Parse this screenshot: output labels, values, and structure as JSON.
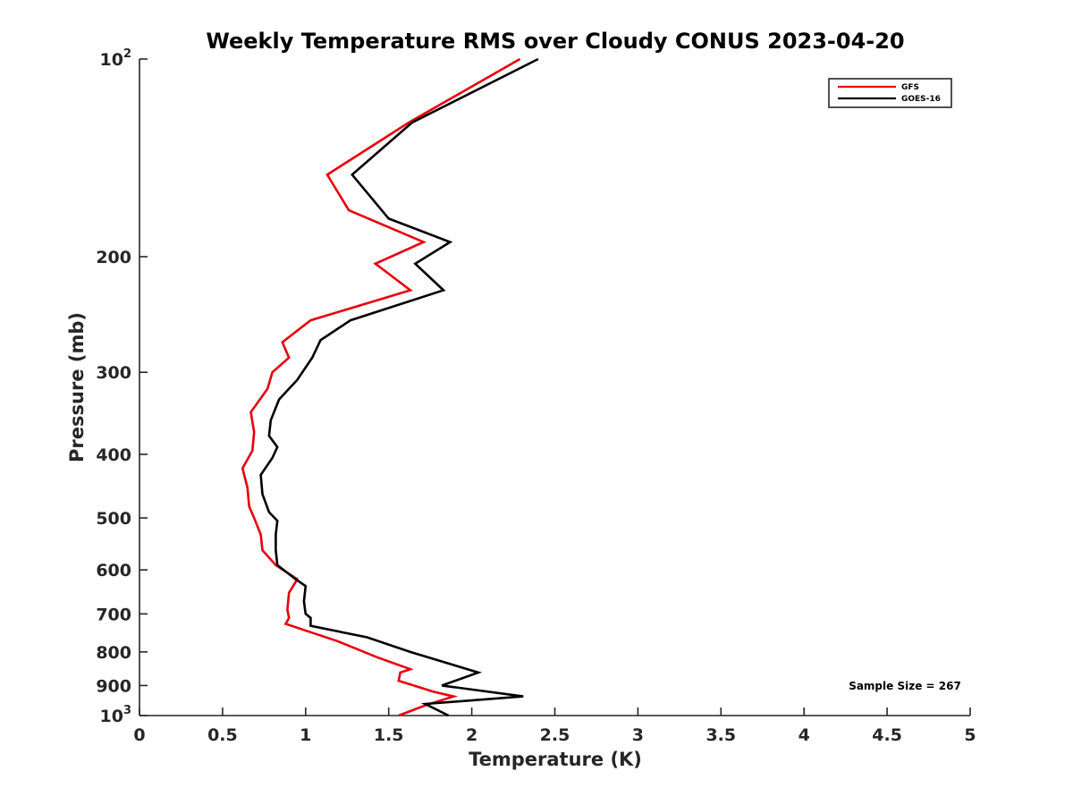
{
  "chart_data": {
    "type": "line",
    "title": "Weekly Temperature RMS over Cloudy CONUS 2023-04-20",
    "xlabel": "Temperature (K)",
    "ylabel": "Pressure (mb)",
    "xlim": [
      0,
      5
    ],
    "ylim": [
      100,
      1000
    ],
    "yscale": "log",
    "y_reversed": true,
    "grid": false,
    "legend_position": "top-right",
    "xticks": [
      0,
      0.5,
      1,
      1.5,
      2,
      2.5,
      3,
      3.5,
      4,
      4.5,
      5
    ],
    "xtick_labels": [
      "0",
      "0.5",
      "1",
      "1.5",
      "2",
      "2.5",
      "3",
      "3.5",
      "4",
      "4.5",
      "5"
    ],
    "yticks": [
      {
        "value": 100,
        "base": "10",
        "exp": "2"
      },
      {
        "value": 200,
        "label": "200"
      },
      {
        "value": 300,
        "label": "300"
      },
      {
        "value": 400,
        "label": "400"
      },
      {
        "value": 500,
        "label": "500"
      },
      {
        "value": 600,
        "label": "600"
      },
      {
        "value": 700,
        "label": "700"
      },
      {
        "value": 800,
        "label": "800"
      },
      {
        "value": 900,
        "label": "900"
      },
      {
        "value": 1000,
        "base": "10",
        "exp": "3"
      }
    ],
    "annotation": "Sample Size = 267",
    "series": [
      {
        "name": "GFS",
        "color": "#e8000b",
        "points": [
          [
            2.29,
            100
          ],
          [
            1.62,
            125
          ],
          [
            1.13,
            150
          ],
          [
            1.26,
            170
          ],
          [
            1.71,
            190
          ],
          [
            1.42,
            205
          ],
          [
            1.63,
            225
          ],
          [
            1.03,
            250
          ],
          [
            0.86,
            270
          ],
          [
            0.9,
            285
          ],
          [
            0.8,
            300
          ],
          [
            0.77,
            318
          ],
          [
            0.67,
            345
          ],
          [
            0.69,
            370
          ],
          [
            0.68,
            395
          ],
          [
            0.62,
            420
          ],
          [
            0.65,
            450
          ],
          [
            0.66,
            480
          ],
          [
            0.69,
            500
          ],
          [
            0.73,
            530
          ],
          [
            0.74,
            560
          ],
          [
            0.82,
            590
          ],
          [
            0.95,
            620
          ],
          [
            0.9,
            650
          ],
          [
            0.89,
            690
          ],
          [
            0.9,
            710
          ],
          [
            0.88,
            725
          ],
          [
            1.02,
            745
          ],
          [
            1.19,
            770
          ],
          [
            1.43,
            815
          ],
          [
            1.63,
            850
          ],
          [
            1.57,
            860
          ],
          [
            1.56,
            885
          ],
          [
            1.77,
            920
          ],
          [
            1.89,
            935
          ],
          [
            1.72,
            965
          ],
          [
            1.56,
            1000
          ]
        ]
      },
      {
        "name": "GOES-16",
        "color": "#000000",
        "points": [
          [
            2.4,
            100
          ],
          [
            1.64,
            125
          ],
          [
            1.28,
            150
          ],
          [
            1.5,
            175
          ],
          [
            1.87,
            190
          ],
          [
            1.66,
            205
          ],
          [
            1.83,
            225
          ],
          [
            1.27,
            250
          ],
          [
            1.09,
            268
          ],
          [
            1.04,
            285
          ],
          [
            0.95,
            308
          ],
          [
            0.84,
            330
          ],
          [
            0.79,
            355
          ],
          [
            0.78,
            375
          ],
          [
            0.83,
            390
          ],
          [
            0.8,
            405
          ],
          [
            0.73,
            430
          ],
          [
            0.74,
            460
          ],
          [
            0.78,
            490
          ],
          [
            0.83,
            505
          ],
          [
            0.82,
            530
          ],
          [
            0.82,
            560
          ],
          [
            0.83,
            590
          ],
          [
            0.94,
            620
          ],
          [
            1.0,
            635
          ],
          [
            0.99,
            670
          ],
          [
            1.0,
            700
          ],
          [
            1.03,
            710
          ],
          [
            1.03,
            730
          ],
          [
            1.37,
            760
          ],
          [
            1.63,
            800
          ],
          [
            2.04,
            860
          ],
          [
            1.82,
            900
          ],
          [
            2.31,
            935
          ],
          [
            1.72,
            960
          ],
          [
            1.86,
            1000
          ]
        ]
      }
    ]
  }
}
